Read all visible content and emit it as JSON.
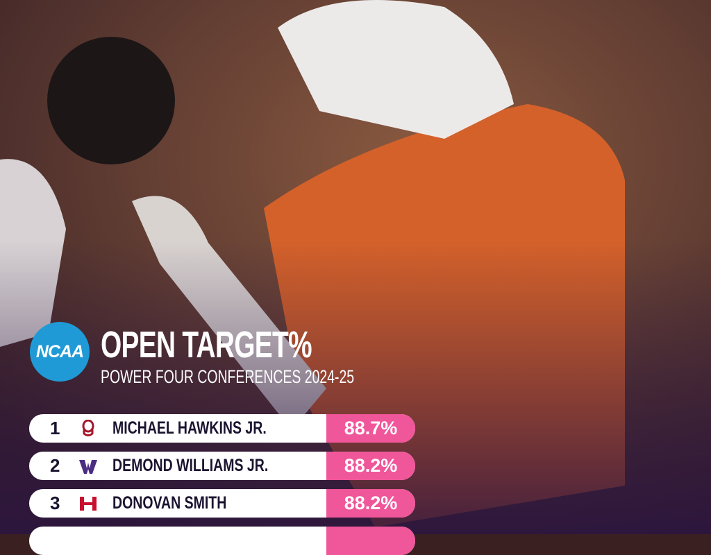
{
  "header": {
    "logo": "NCAA",
    "title": "OPEN TARGET%",
    "subtitle": "POWER FOUR CONFERENCES 2024-25"
  },
  "table": {
    "rows": [
      {
        "rank": "1",
        "name": "MICHAEL HAWKINS JR.",
        "value": "88.7%"
      },
      {
        "rank": "2",
        "name": "DEMOND WILLIAMS JR.",
        "value": "88.2%"
      },
      {
        "rank": "3",
        "name": "DONOVAN SMITH",
        "value": "88.2%"
      }
    ]
  }
}
